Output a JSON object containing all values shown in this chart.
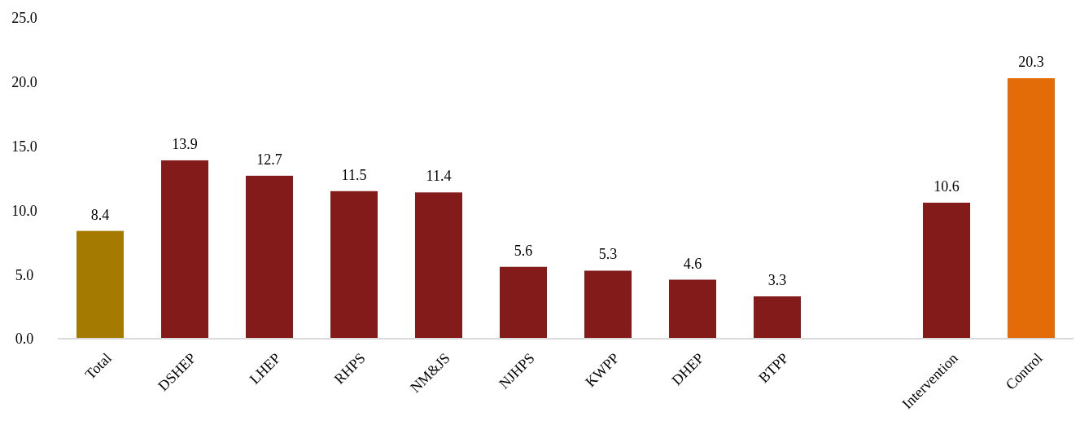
{
  "chart_data": {
    "type": "bar",
    "categories": [
      "Total",
      "DSHEP",
      "LHEP",
      "RHPS",
      "NM&JS",
      "NJHPS",
      "KWPP",
      "DHEP",
      "BTPP",
      null,
      "Intervention",
      "Control"
    ],
    "values": [
      8.4,
      13.9,
      12.7,
      11.5,
      11.4,
      5.6,
      5.3,
      4.6,
      3.3,
      null,
      10.6,
      20.3
    ],
    "colors": [
      "#a47a00",
      "#841b1b",
      "#841b1b",
      "#841b1b",
      "#841b1b",
      "#841b1b",
      "#841b1b",
      "#841b1b",
      "#841b1b",
      null,
      "#841b1b",
      "#e36c09"
    ],
    "ylim": [
      0,
      25
    ],
    "yticks": [
      {
        "value": 0,
        "label": "0.0"
      },
      {
        "value": 5,
        "label": "5.0"
      },
      {
        "value": 10,
        "label": "10.0"
      },
      {
        "value": 15,
        "label": "15.0"
      },
      {
        "value": 20,
        "label": "20.0"
      },
      {
        "value": 25,
        "label": "25.0"
      }
    ],
    "data_labels": true
  }
}
